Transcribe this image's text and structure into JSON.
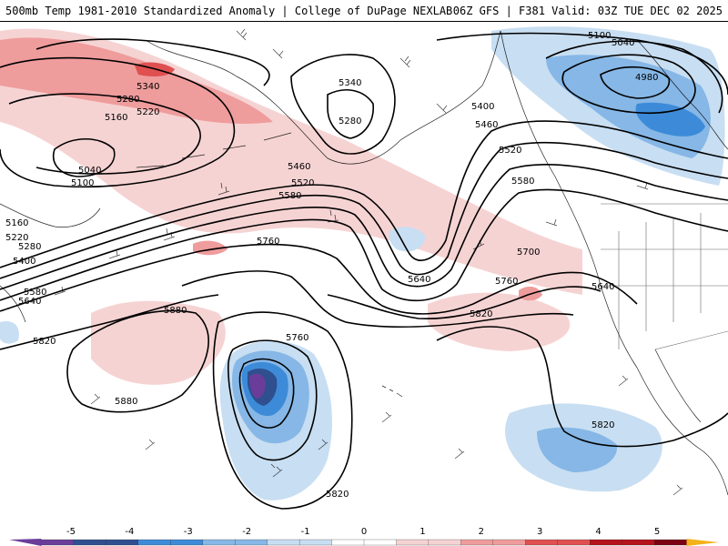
{
  "header": {
    "title": "500mb Temp 1981-2010 Standardized Anomaly | College of DuPage NEXLAB",
    "model_info": "06Z GFS | F381 Valid: 03Z TUE DEC 02 2025"
  },
  "colors": {
    "neg5": "#6a3d9a",
    "neg4": "#2f4f8f",
    "neg3": "#3d8bd8",
    "neg2": "#86b7e6",
    "neg1": "#c8def2",
    "zero": "#ffffff",
    "pos1": "#f6d3d3",
    "pos2": "#ef9c9c",
    "pos3": "#e05050",
    "pos4": "#b5121b",
    "pos5": "#7a0012",
    "pos_extreme": "#f3b21a"
  },
  "contour_labels": [
    "5340",
    "5280",
    "5160",
    "5220",
    "5040",
    "5100",
    "5340",
    "5280",
    "5400",
    "5460",
    "5520",
    "5580",
    "5460",
    "5520",
    "5580",
    "5760",
    "5160",
    "5220",
    "5280",
    "5400",
    "5580",
    "5640",
    "5640",
    "5700",
    "5760",
    "5640",
    "5820",
    "5880",
    "5880",
    "5820",
    "5760",
    "5820",
    "5820",
    "5100",
    "5040",
    "4980"
  ],
  "colorbar": {
    "ticks": [
      "-5",
      "-4",
      "-3",
      "-2",
      "-1",
      "0",
      "1",
      "2",
      "3",
      "4",
      "5"
    ]
  }
}
